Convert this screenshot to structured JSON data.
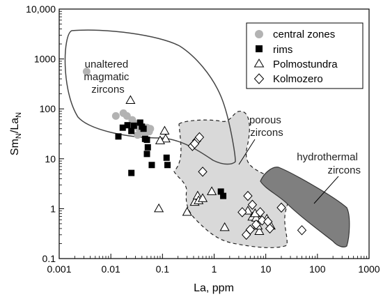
{
  "chart_data": {
    "type": "scatter",
    "xlabel": "La, ppm",
    "ylabel_main": "Sm",
    "ylabel_sub1": "N",
    "ylabel_sep": "/La",
    "ylabel_sub2": "N",
    "xscale": "log",
    "yscale": "log",
    "xlim": [
      0.001,
      1000
    ],
    "ylim": [
      0.1,
      10000
    ],
    "x_ticks": [
      0.001,
      0.01,
      0.1,
      1,
      10,
      100,
      1000
    ],
    "x_tick_labels": [
      "0.001",
      "0.01",
      "0.1",
      "1",
      "10",
      "100",
      "1000"
    ],
    "y_ticks": [
      0.1,
      1,
      10,
      100,
      1000,
      10000
    ],
    "y_tick_labels": [
      "0.1",
      "1",
      "10",
      "100",
      "1000",
      "10,000"
    ],
    "grid": false,
    "legend_position": "top-right",
    "series": [
      {
        "name": "central zones",
        "marker": "circle",
        "color": "#b3b3b3",
        "points": [
          [
            0.0034,
            560
          ],
          [
            0.0125,
            72
          ],
          [
            0.0175,
            82
          ],
          [
            0.0205,
            72
          ],
          [
            0.026,
            60
          ],
          [
            0.03,
            50
          ],
          [
            0.034,
            42
          ],
          [
            0.038,
            35
          ],
          [
            0.042,
            38
          ],
          [
            0.046,
            32
          ],
          [
            0.05,
            42
          ],
          [
            0.058,
            40
          ],
          [
            0.033,
            30
          ],
          [
            0.055,
            35
          ]
        ]
      },
      {
        "name": "rims",
        "marker": "square",
        "color": "#000000",
        "points": [
          [
            0.014,
            28
          ],
          [
            0.017,
            42
          ],
          [
            0.021,
            47
          ],
          [
            0.025,
            36
          ],
          [
            0.028,
            46
          ],
          [
            0.037,
            53
          ],
          [
            0.04,
            44
          ],
          [
            0.043,
            40
          ],
          [
            0.046,
            25
          ],
          [
            0.05,
            24
          ],
          [
            0.052,
            17
          ],
          [
            0.05,
            12.5
          ],
          [
            0.062,
            7.5
          ],
          [
            0.12,
            10.5
          ],
          [
            0.125,
            7.5
          ],
          [
            0.025,
            5.2
          ],
          [
            1.35,
            2.2
          ],
          [
            1.5,
            1.8
          ]
        ]
      },
      {
        "name": "Polmostundra",
        "marker": "triangle",
        "color": "#ffffff",
        "points": [
          [
            0.024,
            148
          ],
          [
            0.11,
            36
          ],
          [
            0.115,
            25
          ],
          [
            0.09,
            23
          ],
          [
            0.085,
            1.0
          ],
          [
            0.3,
            0.85
          ],
          [
            0.42,
            1.35
          ],
          [
            0.48,
            1.8
          ],
          [
            0.5,
            1.45
          ],
          [
            0.6,
            1.6
          ],
          [
            0.9,
            2.2
          ],
          [
            1.6,
            0.42
          ],
          [
            5.5,
            0.68
          ],
          [
            6.5,
            0.65
          ],
          [
            6.2,
            0.8
          ],
          [
            7.5,
            0.35
          ],
          [
            10.5,
            0.62
          ],
          [
            12.5,
            0.45
          ],
          [
            7.0,
            0.45
          ],
          [
            4.5,
            0.9
          ]
        ]
      },
      {
        "name": "Kolmozero",
        "marker": "diamond",
        "color": "#ffffff",
        "points": [
          [
            0.38,
            18
          ],
          [
            0.46,
            23
          ],
          [
            0.52,
            27
          ],
          [
            0.6,
            5.5
          ],
          [
            0.42,
            20
          ],
          [
            3.5,
            0.85
          ],
          [
            4.5,
            1.8
          ],
          [
            5.5,
            1.2
          ],
          [
            6.5,
            0.48
          ],
          [
            7.8,
            0.85
          ],
          [
            8.5,
            0.58
          ],
          [
            11,
            0.55
          ],
          [
            12,
            0.4
          ],
          [
            4.2,
            0.3
          ],
          [
            20,
            1.05
          ],
          [
            50,
            0.37
          ],
          [
            5.0,
            0.38
          ]
        ]
      }
    ],
    "regions": [
      {
        "name": "unaltered magmatic zircons",
        "style": "solid-outline",
        "color": "none"
      },
      {
        "name": "porous zircons",
        "style": "dashed-outline",
        "color": "#d9d9d9"
      },
      {
        "name": "hydrothermal zircons",
        "style": "solid-outline",
        "color": "#7f7f7f"
      }
    ],
    "annotations": [
      {
        "lines": [
          "unaltered",
          "magmatic",
          "zircons"
        ]
      },
      {
        "lines": [
          "porous",
          "zircons"
        ]
      },
      {
        "lines": [
          "hydrothermal",
          "zircons"
        ]
      }
    ]
  }
}
